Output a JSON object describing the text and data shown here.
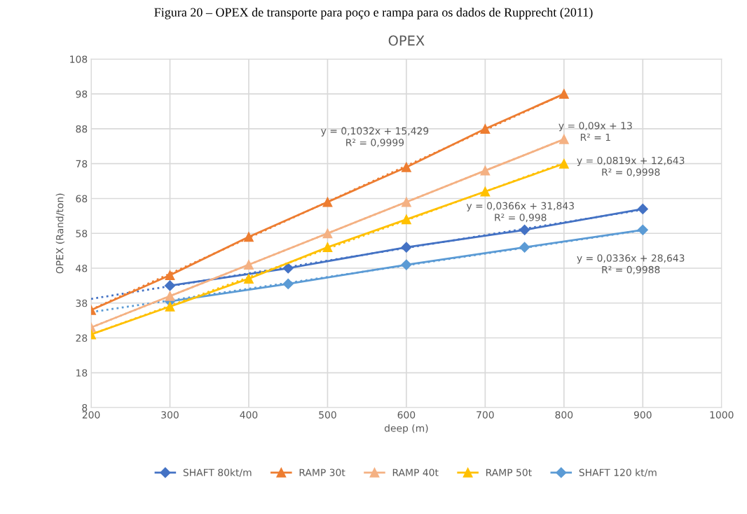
{
  "chart_data": {
    "type": "line",
    "title": "OPEX",
    "xlabel": "deep (m)",
    "ylabel": "OPEX (Rand/ton)",
    "xlim": [
      200,
      1000
    ],
    "xticks": [
      200,
      300,
      400,
      500,
      600,
      700,
      800,
      900,
      1000
    ],
    "ylim": [
      8,
      108
    ],
    "yticks": [
      8,
      18,
      28,
      38,
      48,
      58,
      68,
      78,
      88,
      98,
      108
    ],
    "grid": true,
    "legend": "bottom",
    "line_style": "solid",
    "series": [
      {
        "name": "SHAFT 80kt/m",
        "color": "#4472c4",
        "marker": "diamond",
        "x": [
          300,
          450,
          600,
          750,
          900
        ],
        "values": [
          43,
          48,
          54,
          59,
          65
        ]
      },
      {
        "name": "RAMP 30t",
        "color": "#ed7d31",
        "marker": "triangle",
        "x": [
          200,
          300,
          400,
          500,
          600,
          700,
          800
        ],
        "values": [
          36,
          46,
          57,
          67,
          77,
          88,
          98
        ]
      },
      {
        "name": "RAMP 40t",
        "color": "#f4b183",
        "marker": "triangle",
        "x": [
          200,
          300,
          400,
          500,
          600,
          700,
          800
        ],
        "values": [
          31,
          40,
          49,
          58,
          67,
          76,
          85
        ]
      },
      {
        "name": "RAMP 50t",
        "color": "#ffc000",
        "marker": "triangle",
        "x": [
          200,
          300,
          400,
          500,
          600,
          700,
          800
        ],
        "values": [
          29,
          37,
          45,
          54,
          62,
          70,
          78
        ]
      },
      {
        "name": "SHAFT 120 kt/m",
        "color": "#5b9bd5",
        "marker": "diamond",
        "x": [
          300,
          450,
          600,
          750,
          900
        ],
        "values": [
          38.5,
          43.5,
          49,
          54,
          59
        ]
      },
      {
        "color": "#4472c4",
        "marker": "none",
        "line_style": "dotted",
        "x": [
          200,
          900
        ],
        "values": [
          39.2,
          64.8
        ]
      },
      {
        "color": "#ed7d31",
        "marker": "none",
        "line_style": "dotted",
        "x": [
          200,
          800
        ],
        "values": [
          36.1,
          98
        ]
      },
      {
        "color": "#f4b183",
        "marker": "none",
        "line_style": "dotted",
        "x": [
          200,
          800
        ],
        "values": [
          31,
          85
        ]
      },
      {
        "color": "#ffc000",
        "marker": "none",
        "line_style": "dotted",
        "x": [
          200,
          800
        ],
        "values": [
          29,
          78.2
        ]
      },
      {
        "color": "#5b9bd5",
        "marker": "none",
        "line_style": "dotted",
        "x": [
          200,
          900
        ],
        "values": [
          35.4,
          58.9
        ]
      }
    ],
    "annotations": [
      "Figura 20 – OPEX de transporte para poço e rampa para os dados de Rupprecht (2011)",
      "y = 0,1032x + 15,429\nR² = 0,9999",
      "y = 0,09x + 13\nR² = 1",
      "y = 0,0819x + 12,643\nR² = 0,9998",
      "y = 0,0366x + 31,843\nR² = 0,998",
      "y = 0,0336x + 28,643\nR² = 0,9988"
    ]
  }
}
